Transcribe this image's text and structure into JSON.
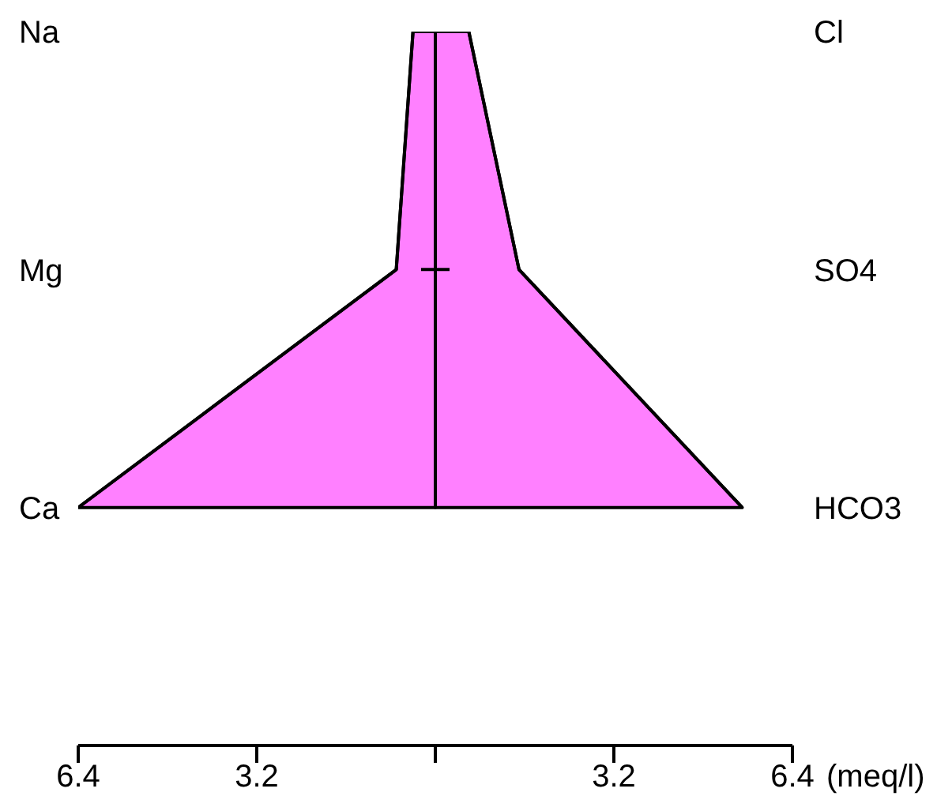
{
  "chart_data": {
    "type": "area",
    "orientation": "horizontal",
    "categories": [
      "Na",
      "Mg",
      "Ca"
    ],
    "y2_categories": [
      "Cl",
      "SO4",
      "HCO3"
    ],
    "series": [
      {
        "color": "#ff80ff",
        "values": [
          -0.4,
          -0.7,
          -6.4
        ]
      },
      {
        "color": "#ff80ff",
        "values": [
          0.6,
          1.5,
          5.5
        ]
      }
    ],
    "xlim": [
      -6.4,
      6.4
    ],
    "xticks": [
      {
        "value": -6.4,
        "label": "6.4"
      },
      {
        "value": -3.2,
        "label": "3.2"
      },
      {
        "value": 3.2,
        "label": "3.2"
      },
      {
        "value": 6.4,
        "label": "6.4"
      }
    ],
    "xlabel": "(meq/l)"
  }
}
